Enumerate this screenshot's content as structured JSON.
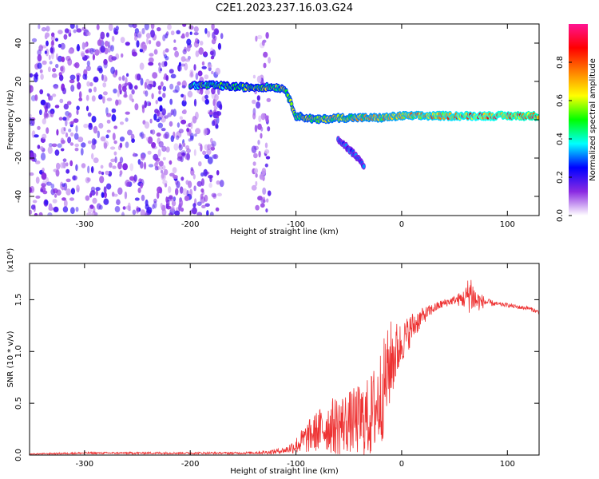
{
  "title": "C2E1.2023.237.16.03.G24",
  "colors": {
    "snr_line": "#ee3333",
    "axis": "#000000"
  },
  "chart_data": [
    {
      "type": "heatmap",
      "xlabel": "Height of straight line (km)",
      "ylabel": "Frequency (Hz)",
      "xlim": [
        -352,
        130
      ],
      "ylim": [
        -50,
        50
      ],
      "xticks": [
        -300,
        -200,
        -100,
        0,
        100
      ],
      "xtick_labels": [
        "-300",
        "-200",
        "-100",
        "0",
        "100"
      ],
      "yticks": [
        -40,
        -20,
        0,
        20,
        40
      ],
      "ytick_labels": [
        "-40",
        "-20",
        "0",
        "20",
        "40"
      ],
      "colorbar": {
        "label": "Normalized spectral amplitude",
        "range": [
          0,
          1
        ],
        "ticks": [
          0.0,
          0.2,
          0.4,
          0.6,
          0.8
        ],
        "tick_labels": [
          "0.0",
          "0.2",
          "0.4",
          "0.6",
          "0.8"
        ],
        "colormap": [
          "#ffffff",
          "#8a2be2",
          "#0000ff",
          "#00ffff",
          "#00ff00",
          "#ffff00",
          "#ff8000",
          "#ff0000",
          "#ff1493"
        ]
      },
      "features": [
        {
          "name": "broadband noise",
          "x_range": [
            -352,
            -170
          ],
          "y_range": [
            -50,
            50
          ],
          "amplitude": 0.12
        },
        {
          "name": "noise band",
          "x_range": [
            -140,
            -125
          ],
          "y_range": [
            -50,
            50
          ],
          "amplitude": 0.1
        },
        {
          "name": "signal track",
          "points": [
            [
              -200,
              18
            ],
            [
              -180,
              18
            ],
            [
              -150,
              17
            ],
            [
              -120,
              17
            ],
            [
              -110,
              16
            ],
            [
              -100,
              2
            ],
            [
              -80,
              0
            ],
            [
              -60,
              1
            ],
            [
              -40,
              1
            ],
            [
              -20,
              1
            ],
            [
              0,
              2
            ],
            [
              50,
              2
            ],
            [
              100,
              2
            ],
            [
              130,
              2
            ]
          ],
          "amplitude_start": 0.5,
          "amplitude_end": 0.9
        },
        {
          "name": "secondary track",
          "points": [
            [
              -60,
              -10
            ],
            [
              -45,
              -18
            ],
            [
              -35,
              -25
            ]
          ],
          "amplitude": 0.3
        }
      ]
    },
    {
      "type": "line",
      "xlabel": "Height of straight line (km)",
      "ylabel": "SNR (10 * v/v)",
      "y_multiplier": "(x10⁴)",
      "xlim": [
        -352,
        130
      ],
      "ylim": [
        0,
        1.85
      ],
      "xticks": [
        -300,
        -200,
        -100,
        0,
        100
      ],
      "xtick_labels": [
        "-300",
        "-200",
        "-100",
        "0",
        "100"
      ],
      "yticks": [
        0.0,
        0.5,
        1.0,
        1.5
      ],
      "ytick_labels": [
        "0.0",
        "0.5",
        "1.0",
        "1.5"
      ],
      "series": [
        {
          "x": [
            -352,
            -300,
            -250,
            -200,
            -150,
            -125,
            -110,
            -100,
            -90,
            -80,
            -70,
            -60,
            -50,
            -40,
            -30,
            -20,
            -10,
            0,
            10,
            20,
            30,
            40,
            50,
            60,
            65,
            70,
            80,
            90,
            100,
            110,
            120,
            130
          ],
          "y": [
            0.01,
            0.02,
            0.02,
            0.02,
            0.02,
            0.03,
            0.05,
            0.1,
            0.18,
            0.25,
            0.3,
            0.32,
            0.35,
            0.37,
            0.4,
            0.6,
            0.95,
            1.1,
            1.25,
            1.35,
            1.42,
            1.47,
            1.5,
            1.52,
            1.6,
            1.5,
            1.48,
            1.46,
            1.45,
            1.43,
            1.42,
            1.38
          ],
          "spread": [
            0.005,
            0.01,
            0.01,
            0.01,
            0.01,
            0.02,
            0.03,
            0.08,
            0.15,
            0.2,
            0.25,
            0.3,
            0.3,
            0.35,
            0.4,
            0.5,
            0.4,
            0.2,
            0.15,
            0.08,
            0.05,
            0.04,
            0.04,
            0.1,
            0.22,
            0.12,
            0.04,
            0.02,
            0.02,
            0.02,
            0.02,
            0.02
          ]
        }
      ]
    }
  ]
}
